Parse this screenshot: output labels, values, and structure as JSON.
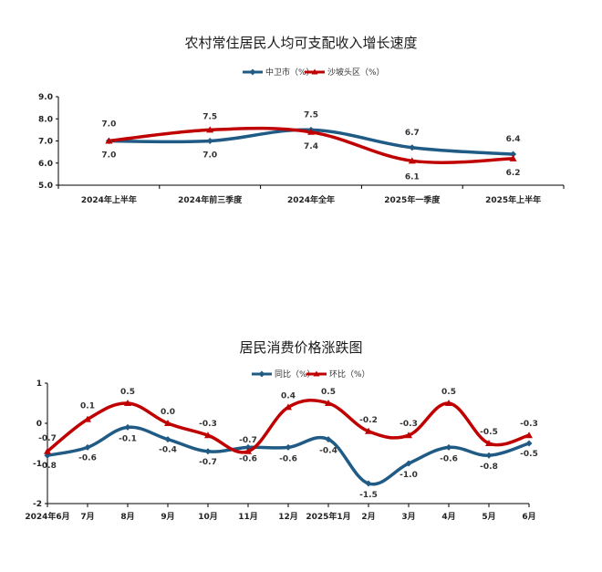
{
  "chart_data": [
    {
      "type": "line",
      "title": "农村常住居民人均可支配收入增长速度",
      "categories": [
        "2024年上半年",
        "2024年前三季度",
        "2024年全年",
        "2025年一季度",
        "2025年上半年"
      ],
      "series": [
        {
          "name": "中卫市（%）",
          "values": [
            7.0,
            7.0,
            7.5,
            6.7,
            6.4
          ],
          "color": "#1f5b85",
          "marker": "diamond"
        },
        {
          "name": "沙坡头区（%）",
          "values": [
            7.0,
            7.5,
            7.4,
            6.1,
            6.2
          ],
          "color": "#c00000",
          "marker": "triangle"
        }
      ],
      "y_ticks": [
        "9.0",
        "8.0",
        "7.0",
        "6.0",
        "5.0"
      ],
      "ylim": [
        5.0,
        9.0
      ],
      "legend": "top-center",
      "grid": false
    },
    {
      "type": "line",
      "title": "居民消费价格涨跌图",
      "categories": [
        "2024年6月",
        "7月",
        "8月",
        "9月",
        "10月",
        "11月",
        "12月",
        "2025年1月",
        "2月",
        "3月",
        "4月",
        "5月",
        "6月"
      ],
      "series": [
        {
          "name": "同比（%）",
          "values": [
            -0.8,
            -0.6,
            -0.1,
            -0.4,
            -0.7,
            -0.6,
            -0.6,
            -0.4,
            -1.5,
            -1.0,
            -0.6,
            -0.8,
            -0.5
          ],
          "color": "#1f5b85",
          "marker": "diamond"
        },
        {
          "name": "环比（%）",
          "values": [
            -0.7,
            0.1,
            0.5,
            0.0,
            -0.3,
            -0.7,
            0.4,
            0.5,
            -0.2,
            -0.3,
            0.5,
            -0.5,
            -0.3
          ],
          "color": "#c00000",
          "marker": "triangle"
        }
      ],
      "y_ticks": [
        "1",
        "0",
        "-1",
        "-2"
      ],
      "ylim": [
        -2,
        1
      ],
      "legend": "top-center",
      "grid": false
    }
  ]
}
